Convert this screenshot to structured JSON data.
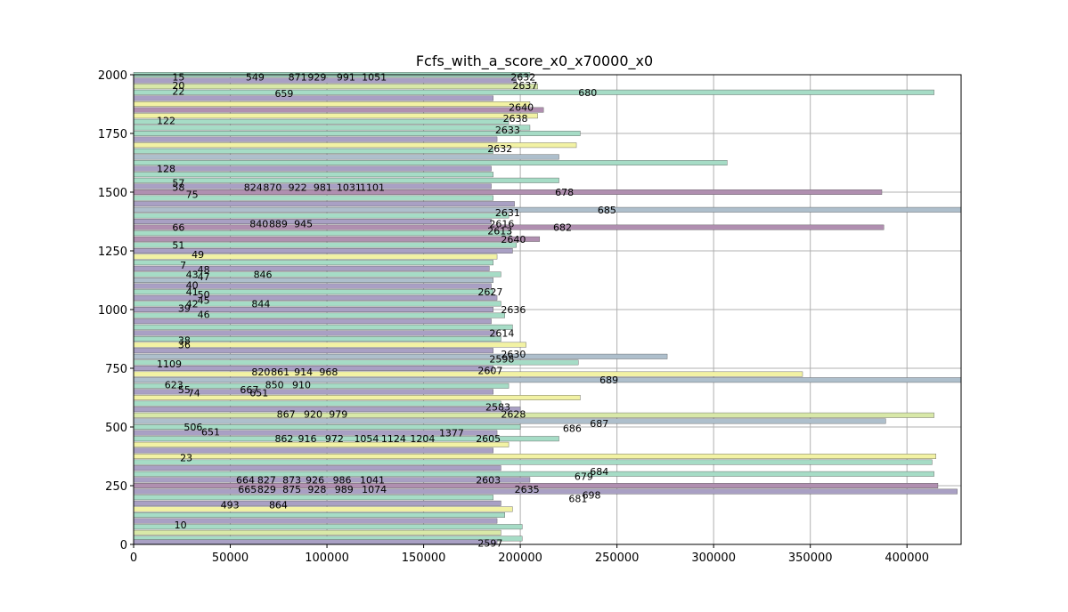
{
  "chart_data": {
    "type": "bar",
    "orientation": "horizontal",
    "title": "Fcfs_with_a_score_x0_x70000_x0",
    "xlabel": "",
    "ylabel": "",
    "xlim": [
      0,
      428000
    ],
    "ylim": [
      0,
      2000
    ],
    "grid": true,
    "xticks": [
      0,
      50000,
      100000,
      150000,
      200000,
      250000,
      300000,
      350000,
      400000
    ],
    "xtick_labels": [
      "0",
      "50000",
      "100000",
      "150000",
      "200000",
      "250000",
      "300000",
      "350000",
      "400000"
    ],
    "yticks": [
      0,
      250,
      500,
      750,
      1000,
      1250,
      1500,
      1750,
      2000
    ],
    "ytick_labels": [
      "0",
      "250",
      "500",
      "750",
      "1000",
      "1250",
      "1500",
      "1750",
      "2000"
    ],
    "bar_colors": [
      "#a6dcc6",
      "#a9a0c4",
      "#f2f2a4",
      "#aebfcc",
      "#b08fb0",
      "#d8e8a8"
    ],
    "bars": [
      {
        "y": 2000,
        "value": 205000,
        "color": 0
      },
      {
        "y": 1975,
        "value": 198000,
        "color": 1
      },
      {
        "y": 1950,
        "value": 209000,
        "color": 5
      },
      {
        "y": 1925,
        "value": 414000,
        "color": 0
      },
      {
        "y": 1900,
        "value": 186000,
        "color": 1
      },
      {
        "y": 1875,
        "value": 205000,
        "color": 2
      },
      {
        "y": 1850,
        "value": 212000,
        "color": 4
      },
      {
        "y": 1825,
        "value": 209000,
        "color": 2
      },
      {
        "y": 1800,
        "value": 194000,
        "color": 0
      },
      {
        "y": 1775,
        "value": 205000,
        "color": 0
      },
      {
        "y": 1750,
        "value": 231000,
        "color": 0
      },
      {
        "y": 1725,
        "value": 188000,
        "color": 1
      },
      {
        "y": 1700,
        "value": 229000,
        "color": 2
      },
      {
        "y": 1675,
        "value": 186000,
        "color": 0
      },
      {
        "y": 1650,
        "value": 220000,
        "color": 3
      },
      {
        "y": 1625,
        "value": 307000,
        "color": 0
      },
      {
        "y": 1600,
        "value": 185000,
        "color": 1
      },
      {
        "y": 1575,
        "value": 186000,
        "color": 0
      },
      {
        "y": 1550,
        "value": 220000,
        "color": 0
      },
      {
        "y": 1525,
        "value": 185000,
        "color": 1
      },
      {
        "y": 1500,
        "value": 387000,
        "color": 4
      },
      {
        "y": 1475,
        "value": 186000,
        "color": 0
      },
      {
        "y": 1450,
        "value": 197000,
        "color": 1
      },
      {
        "y": 1425,
        "value": 428000,
        "color": 3
      },
      {
        "y": 1400,
        "value": 194000,
        "color": 0
      },
      {
        "y": 1375,
        "value": 185000,
        "color": 1
      },
      {
        "y": 1350,
        "value": 388000,
        "color": 4
      },
      {
        "y": 1325,
        "value": 195000,
        "color": 0
      },
      {
        "y": 1300,
        "value": 210000,
        "color": 4
      },
      {
        "y": 1275,
        "value": 198000,
        "color": 0
      },
      {
        "y": 1250,
        "value": 196000,
        "color": 1
      },
      {
        "y": 1225,
        "value": 188000,
        "color": 2
      },
      {
        "y": 1200,
        "value": 186000,
        "color": 0
      },
      {
        "y": 1175,
        "value": 184000,
        "color": 1
      },
      {
        "y": 1150,
        "value": 190000,
        "color": 0
      },
      {
        "y": 1125,
        "value": 186000,
        "color": 3
      },
      {
        "y": 1100,
        "value": 185000,
        "color": 1
      },
      {
        "y": 1075,
        "value": 186000,
        "color": 0
      },
      {
        "y": 1050,
        "value": 188000,
        "color": 1
      },
      {
        "y": 1025,
        "value": 190000,
        "color": 0
      },
      {
        "y": 1000,
        "value": 186000,
        "color": 1
      },
      {
        "y": 975,
        "value": 192000,
        "color": 0
      },
      {
        "y": 950,
        "value": 185000,
        "color": 1
      },
      {
        "y": 925,
        "value": 196000,
        "color": 0
      },
      {
        "y": 900,
        "value": 188000,
        "color": 1
      },
      {
        "y": 875,
        "value": 190000,
        "color": 0
      },
      {
        "y": 850,
        "value": 203000,
        "color": 2
      },
      {
        "y": 825,
        "value": 186000,
        "color": 1
      },
      {
        "y": 800,
        "value": 276000,
        "color": 3
      },
      {
        "y": 775,
        "value": 230000,
        "color": 0
      },
      {
        "y": 750,
        "value": 186000,
        "color": 1
      },
      {
        "y": 725,
        "value": 346000,
        "color": 2
      },
      {
        "y": 700,
        "value": 428000,
        "color": 3
      },
      {
        "y": 675,
        "value": 194000,
        "color": 0
      },
      {
        "y": 650,
        "value": 186000,
        "color": 1
      },
      {
        "y": 625,
        "value": 231000,
        "color": 2
      },
      {
        "y": 600,
        "value": 190000,
        "color": 0
      },
      {
        "y": 575,
        "value": 200000,
        "color": 1
      },
      {
        "y": 550,
        "value": 414000,
        "color": 5
      },
      {
        "y": 525,
        "value": 389000,
        "color": 3
      },
      {
        "y": 500,
        "value": 200000,
        "color": 0
      },
      {
        "y": 475,
        "value": 188000,
        "color": 1
      },
      {
        "y": 450,
        "value": 220000,
        "color": 0
      },
      {
        "y": 425,
        "value": 194000,
        "color": 2
      },
      {
        "y": 400,
        "value": 186000,
        "color": 1
      },
      {
        "y": 375,
        "value": 415000,
        "color": 2
      },
      {
        "y": 350,
        "value": 413000,
        "color": 0
      },
      {
        "y": 325,
        "value": 190000,
        "color": 1
      },
      {
        "y": 300,
        "value": 414000,
        "color": 0
      },
      {
        "y": 275,
        "value": 205000,
        "color": 1
      },
      {
        "y": 250,
        "value": 416000,
        "color": 4
      },
      {
        "y": 225,
        "value": 426000,
        "color": 1
      },
      {
        "y": 200,
        "value": 186000,
        "color": 0
      },
      {
        "y": 175,
        "value": 190000,
        "color": 1
      },
      {
        "y": 150,
        "value": 196000,
        "color": 2
      },
      {
        "y": 125,
        "value": 192000,
        "color": 0
      },
      {
        "y": 100,
        "value": 188000,
        "color": 1
      },
      {
        "y": 75,
        "value": 201000,
        "color": 0
      },
      {
        "y": 50,
        "value": 190000,
        "color": 5
      },
      {
        "y": 25,
        "value": 201000,
        "color": 0
      },
      {
        "y": 10,
        "value": 188000,
        "color": 1
      }
    ],
    "annotations": [
      {
        "text": "15",
        "x": 20000,
        "y": 1990
      },
      {
        "text": "549",
        "x": 58000,
        "y": 1990
      },
      {
        "text": "871",
        "x": 80000,
        "y": 1990
      },
      {
        "text": "929",
        "x": 90000,
        "y": 1990
      },
      {
        "text": "991",
        "x": 105000,
        "y": 1990
      },
      {
        "text": "1051",
        "x": 118000,
        "y": 1990
      },
      {
        "text": "2632",
        "x": 195000,
        "y": 1990
      },
      {
        "text": "20",
        "x": 20000,
        "y": 1955
      },
      {
        "text": "2637",
        "x": 196000,
        "y": 1955
      },
      {
        "text": "680",
        "x": 230000,
        "y": 1925
      },
      {
        "text": "22",
        "x": 20000,
        "y": 1930
      },
      {
        "text": "659",
        "x": 73000,
        "y": 1920
      },
      {
        "text": "2640",
        "x": 194000,
        "y": 1862
      },
      {
        "text": "122",
        "x": 12000,
        "y": 1805
      },
      {
        "text": "2638",
        "x": 191000,
        "y": 1815
      },
      {
        "text": "2633",
        "x": 187000,
        "y": 1765
      },
      {
        "text": "2632",
        "x": 183000,
        "y": 1685
      },
      {
        "text": "128",
        "x": 12000,
        "y": 1600
      },
      {
        "text": "57",
        "x": 20000,
        "y": 1540
      },
      {
        "text": "58",
        "x": 20000,
        "y": 1520
      },
      {
        "text": "824",
        "x": 57000,
        "y": 1520
      },
      {
        "text": "870",
        "x": 67000,
        "y": 1520
      },
      {
        "text": "922",
        "x": 80000,
        "y": 1520
      },
      {
        "text": "981",
        "x": 93000,
        "y": 1520
      },
      {
        "text": "1031",
        "x": 105000,
        "y": 1520
      },
      {
        "text": "1101",
        "x": 117000,
        "y": 1520
      },
      {
        "text": "678",
        "x": 218000,
        "y": 1500
      },
      {
        "text": "75",
        "x": 27000,
        "y": 1490
      },
      {
        "text": "685",
        "x": 240000,
        "y": 1425
      },
      {
        "text": "2631",
        "x": 187000,
        "y": 1412
      },
      {
        "text": "2616",
        "x": 184000,
        "y": 1365
      },
      {
        "text": "840",
        "x": 60000,
        "y": 1365
      },
      {
        "text": "889",
        "x": 70000,
        "y": 1365
      },
      {
        "text": "945",
        "x": 83000,
        "y": 1365
      },
      {
        "text": "682",
        "x": 217000,
        "y": 1350
      },
      {
        "text": "66",
        "x": 20000,
        "y": 1350
      },
      {
        "text": "2613",
        "x": 183000,
        "y": 1335
      },
      {
        "text": "2640",
        "x": 190000,
        "y": 1300
      },
      {
        "text": "51",
        "x": 20000,
        "y": 1275
      },
      {
        "text": "49",
        "x": 30000,
        "y": 1235
      },
      {
        "text": "7",
        "x": 24000,
        "y": 1190
      },
      {
        "text": "48",
        "x": 33000,
        "y": 1170
      },
      {
        "text": "43",
        "x": 27000,
        "y": 1150
      },
      {
        "text": "47",
        "x": 33000,
        "y": 1140
      },
      {
        "text": "846",
        "x": 62000,
        "y": 1150
      },
      {
        "text": "40",
        "x": 27000,
        "y": 1105
      },
      {
        "text": "41",
        "x": 27000,
        "y": 1075
      },
      {
        "text": "50",
        "x": 33000,
        "y": 1065
      },
      {
        "text": "2627",
        "x": 178000,
        "y": 1075
      },
      {
        "text": "45",
        "x": 33000,
        "y": 1040
      },
      {
        "text": "42",
        "x": 27000,
        "y": 1025
      },
      {
        "text": "844",
        "x": 61000,
        "y": 1025
      },
      {
        "text": "39",
        "x": 23000,
        "y": 1005
      },
      {
        "text": "46",
        "x": 33000,
        "y": 980
      },
      {
        "text": "2636",
        "x": 190000,
        "y": 1000
      },
      {
        "text": "2614",
        "x": 184000,
        "y": 900
      },
      {
        "text": "36",
        "x": 23000,
        "y": 850
      },
      {
        "text": "38",
        "x": 23000,
        "y": 870
      },
      {
        "text": "2630",
        "x": 190000,
        "y": 810
      },
      {
        "text": "2598",
        "x": 184000,
        "y": 790
      },
      {
        "text": "1109",
        "x": 12000,
        "y": 768
      },
      {
        "text": "820",
        "x": 61000,
        "y": 735
      },
      {
        "text": "861",
        "x": 71000,
        "y": 735
      },
      {
        "text": "914",
        "x": 83000,
        "y": 735
      },
      {
        "text": "968",
        "x": 96000,
        "y": 735
      },
      {
        "text": "2607",
        "x": 178000,
        "y": 740
      },
      {
        "text": "689",
        "x": 241000,
        "y": 700
      },
      {
        "text": "623",
        "x": 16000,
        "y": 680
      },
      {
        "text": "850",
        "x": 68000,
        "y": 680
      },
      {
        "text": "910",
        "x": 82000,
        "y": 680
      },
      {
        "text": "55",
        "x": 23000,
        "y": 660
      },
      {
        "text": "667",
        "x": 55000,
        "y": 660
      },
      {
        "text": "74",
        "x": 28000,
        "y": 645
      },
      {
        "text": "651",
        "x": 60000,
        "y": 645
      },
      {
        "text": "2583",
        "x": 182000,
        "y": 585
      },
      {
        "text": "867",
        "x": 74000,
        "y": 555
      },
      {
        "text": "920",
        "x": 88000,
        "y": 555
      },
      {
        "text": "979",
        "x": 101000,
        "y": 555
      },
      {
        "text": "2628",
        "x": 190000,
        "y": 555
      },
      {
        "text": "687",
        "x": 236000,
        "y": 515
      },
      {
        "text": "686",
        "x": 222000,
        "y": 495
      },
      {
        "text": "506",
        "x": 26000,
        "y": 500
      },
      {
        "text": "651",
        "x": 35000,
        "y": 480
      },
      {
        "text": "1377",
        "x": 158000,
        "y": 475
      },
      {
        "text": "862",
        "x": 73000,
        "y": 450
      },
      {
        "text": "916",
        "x": 85000,
        "y": 450
      },
      {
        "text": "972",
        "x": 99000,
        "y": 450
      },
      {
        "text": "1054",
        "x": 114000,
        "y": 450
      },
      {
        "text": "1124",
        "x": 128000,
        "y": 450
      },
      {
        "text": "1204",
        "x": 143000,
        "y": 450
      },
      {
        "text": "2605",
        "x": 177000,
        "y": 450
      },
      {
        "text": "23",
        "x": 24000,
        "y": 370
      },
      {
        "text": "684",
        "x": 236000,
        "y": 310
      },
      {
        "text": "679",
        "x": 228000,
        "y": 290
      },
      {
        "text": "664",
        "x": 53000,
        "y": 275
      },
      {
        "text": "827",
        "x": 64000,
        "y": 275
      },
      {
        "text": "873",
        "x": 77000,
        "y": 275
      },
      {
        "text": "926",
        "x": 89000,
        "y": 275
      },
      {
        "text": "986",
        "x": 103000,
        "y": 275
      },
      {
        "text": "1041",
        "x": 117000,
        "y": 275
      },
      {
        "text": "2603",
        "x": 177000,
        "y": 275
      },
      {
        "text": "665",
        "x": 54000,
        "y": 235
      },
      {
        "text": "829",
        "x": 64000,
        "y": 235
      },
      {
        "text": "875",
        "x": 77000,
        "y": 235
      },
      {
        "text": "928",
        "x": 90000,
        "y": 235
      },
      {
        "text": "989",
        "x": 104000,
        "y": 235
      },
      {
        "text": "1074",
        "x": 118000,
        "y": 235
      },
      {
        "text": "2635",
        "x": 197000,
        "y": 235
      },
      {
        "text": "698",
        "x": 232000,
        "y": 210
      },
      {
        "text": "681",
        "x": 225000,
        "y": 195
      },
      {
        "text": "493",
        "x": 45000,
        "y": 168
      },
      {
        "text": "864",
        "x": 70000,
        "y": 168
      },
      {
        "text": "10",
        "x": 21000,
        "y": 83
      },
      {
        "text": "2597",
        "x": 178000,
        "y": 5
      }
    ]
  }
}
